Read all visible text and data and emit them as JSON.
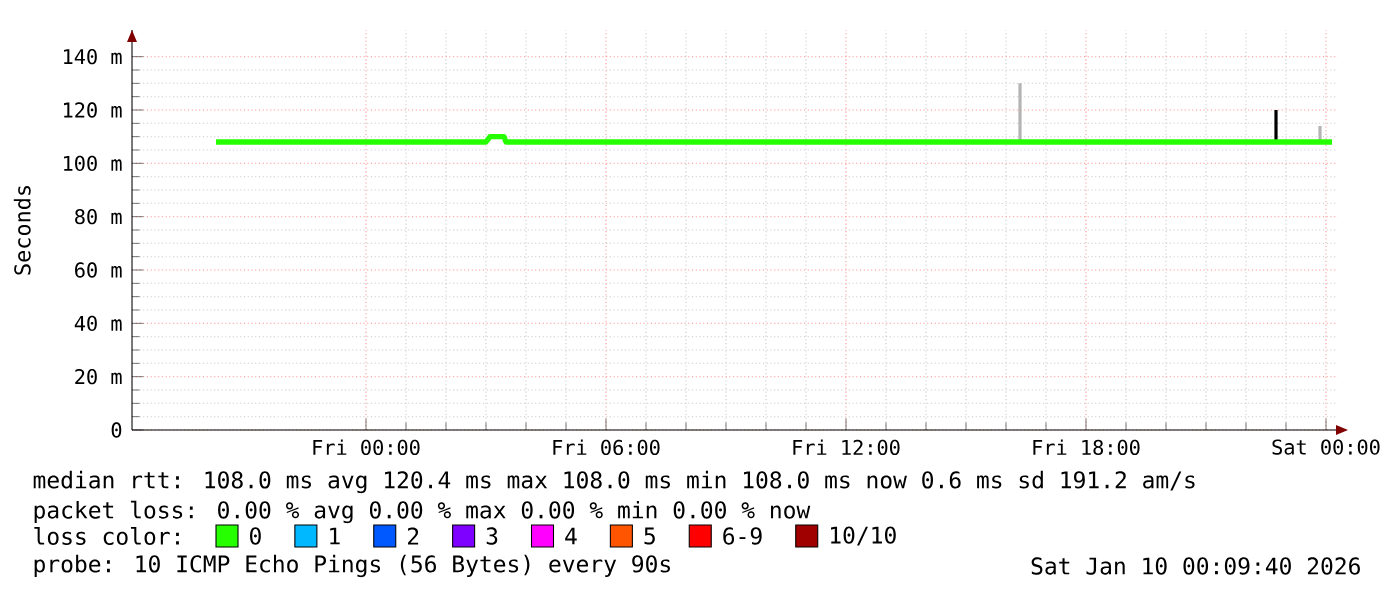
{
  "chart_data": {
    "type": "line",
    "ylabel": "Seconds",
    "legend_title": "loss color:",
    "legend": "bottom",
    "grid": true,
    "xlim": [
      "2026-01-08T18:09",
      "2026-01-10T00:18"
    ],
    "xticks": [
      {
        "value": "2026-01-09T00:00",
        "label": "Fri 00:00"
      },
      {
        "value": "2026-01-09T06:00",
        "label": "Fri 06:00"
      },
      {
        "value": "2026-01-09T12:00",
        "label": "Fri 12:00"
      },
      {
        "value": "2026-01-09T18:00",
        "label": "Fri 18:00"
      },
      {
        "value": "2026-01-10T00:00",
        "label": "Sat 00:00"
      }
    ],
    "ylim": [
      0,
      150
    ],
    "yticks": [
      0,
      {
        "value": 20,
        "label": "20 m"
      },
      {
        "value": 40,
        "label": "40 m"
      },
      {
        "value": 60,
        "label": "60 m"
      },
      {
        "value": 80,
        "label": "80 m"
      },
      {
        "value": 100,
        "label": "100 m"
      },
      {
        "value": 120,
        "label": "120 m"
      },
      {
        "value": 140,
        "label": "140 m"
      }
    ],
    "series": [
      {
        "x": [
          "2026-01-09T16:21",
          "2026-01-09T16:21",
          "2026-01-09T16:24",
          "2026-01-09T23:51",
          "2026-01-09T23:51"
        ],
        "values": [
          108,
          130,
          null,
          108,
          114
        ],
        "color": "#b4b4b4"
      },
      {
        "x": [
          "2026-01-09T22:45",
          "2026-01-09T22:45"
        ],
        "values": [
          108,
          120
        ],
        "color": "#000000"
      },
      {
        "name": "0",
        "color": "#26ff00",
        "x": [
          "2026-01-08T20:15",
          "2026-01-09T03:00",
          "2026-01-09T03:06",
          "2026-01-09T03:27",
          "2026-01-09T03:30",
          "2026-01-10T00:09"
        ],
        "values": [
          108,
          108,
          110,
          110,
          108,
          108
        ]
      },
      {
        "name": "1",
        "color": "#00b8ff"
      },
      {
        "name": "2",
        "color": "#0059ff"
      },
      {
        "name": "3",
        "color": "#7e00ff"
      },
      {
        "name": "4",
        "color": "#ff00ff"
      },
      {
        "name": "5",
        "color": "#ff5500"
      },
      {
        "name": "6-9",
        "color": "#ff0000"
      },
      {
        "name": "10/10",
        "color": "#a10000"
      }
    ],
    "annotations": [
      "median rtt: 108.0 ms avg 120.4 ms max 108.0 ms min 108.0 ms now 0.6 ms sd 191.2 am/s",
      "packet loss: 0.00 % avg 0.00 % max 0.00 % min 0.00 % now",
      "probe: 10 ICMP Echo Pings (56 Bytes) every 90s",
      "Sat Jan 10 00:09:40 2026"
    ]
  }
}
